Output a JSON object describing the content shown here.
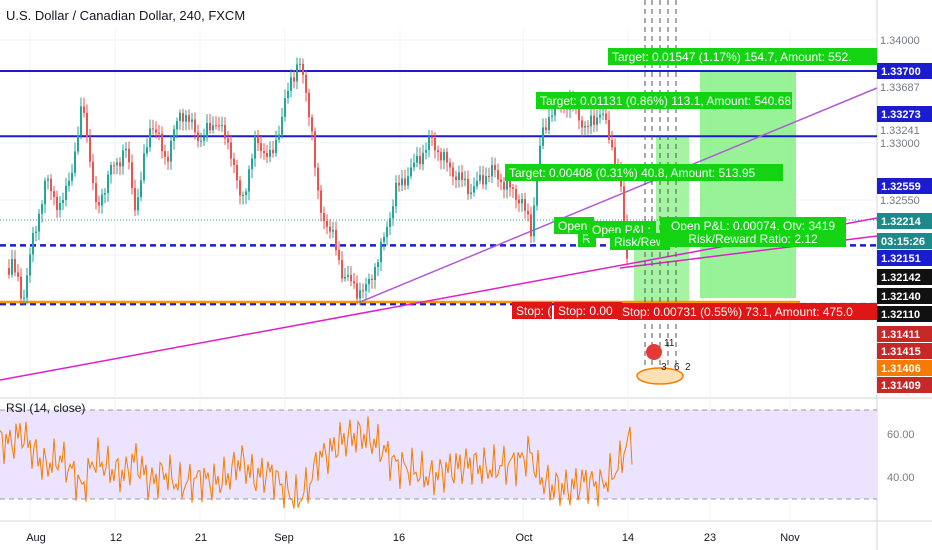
{
  "header": {
    "title": "U.S. Dollar / Canadian Dollar, 240, FXCM"
  },
  "rsi_label": "RSI (14, close)",
  "colors": {
    "up": "#26a69a",
    "down": "#ef5350",
    "blue_line": "#1c1ccf",
    "orange_line": "#ff9800",
    "pink_line": "#e01ec9",
    "purple_line": "#b05cd6",
    "target_fill": "#7ef07e",
    "stop_fill": "#d98a8a",
    "rsi": "#f57c00",
    "rsi_band": "#ece4ff",
    "label_green": "#13d313",
    "label_red": "#e01616"
  },
  "chart_data": {
    "type": "candlestick",
    "symbol": "U.S. Dollar / Canadian Dollar",
    "interval": "240",
    "source": "FXCM",
    "x_tick_labels": [
      "Aug",
      "12",
      "21",
      "Sep",
      "16",
      "Oct",
      "14",
      "23",
      "Nov"
    ],
    "y_tick_labels": [
      "1.34000",
      "1.33687",
      "1.33241",
      "1.33000",
      "1.32550"
    ],
    "price_badges": [
      {
        "text": "1.33700",
        "color": "#1c1ccf"
      },
      {
        "text": "1.33273",
        "color": "#1c1ccf"
      },
      {
        "text": "1.32559",
        "color": "#1c1ccf"
      },
      {
        "text": "1.32214",
        "color": "#1c8a8a"
      },
      {
        "text": "03:15:26",
        "color": "#1c8a8a"
      },
      {
        "text": "1.32151",
        "color": "#1c1ccf"
      },
      {
        "text": "1.32142",
        "color": "#111111"
      },
      {
        "text": "1.32140",
        "color": "#111111"
      },
      {
        "text": "1.32110",
        "color": "#111111"
      },
      {
        "text": "1.31411",
        "color": "#c62828"
      },
      {
        "text": "1.31415",
        "color": "#c62828"
      },
      {
        "text": "1.31406",
        "color": "#f57c00"
      },
      {
        "text": "1.31409",
        "color": "#c62828"
      }
    ],
    "horizontal_levels": [
      1.337,
      1.33273,
      1.32559,
      1.32214,
      1.3211
    ],
    "position_labels": [
      {
        "text": "Target: 0.01547 (1.17%) 154.7, Amount: 552.",
        "kind": "target"
      },
      {
        "text": "Target: 0.01131 (0.86%) 113.1, Amount: 540.68",
        "kind": "target"
      },
      {
        "text": "Target: 0.00408 (0.31%) 40.8, Amount: 513.95",
        "kind": "target"
      },
      {
        "text": "Open P&L: 0.00074, Qty: 3419",
        "kind": "pnl"
      },
      {
        "text": "Risk/Reward Ratio: 2.12",
        "kind": "pnl"
      },
      {
        "text": "Open",
        "kind": "pnl"
      },
      {
        "text": "Open P&L:",
        "kind": "pnl"
      },
      {
        "text": "R",
        "kind": "pnl"
      },
      {
        "text": "Risk/Rew",
        "kind": "pnl"
      },
      {
        "text": "Stop: 0.00731 (0.55%) 73.1, Amount: 475.0",
        "kind": "stop"
      },
      {
        "text": "Stop: 0.00",
        "kind": "stop"
      },
      {
        "text": "Stop: (",
        "kind": "stop"
      }
    ],
    "event_markers": [
      "11",
      "3",
      "6",
      "2"
    ],
    "rsi": {
      "label": "RSI (14, close)",
      "y_tick_labels": [
        "60.00",
        "40.00"
      ],
      "upper_band": 70,
      "lower_band": 30
    }
  }
}
